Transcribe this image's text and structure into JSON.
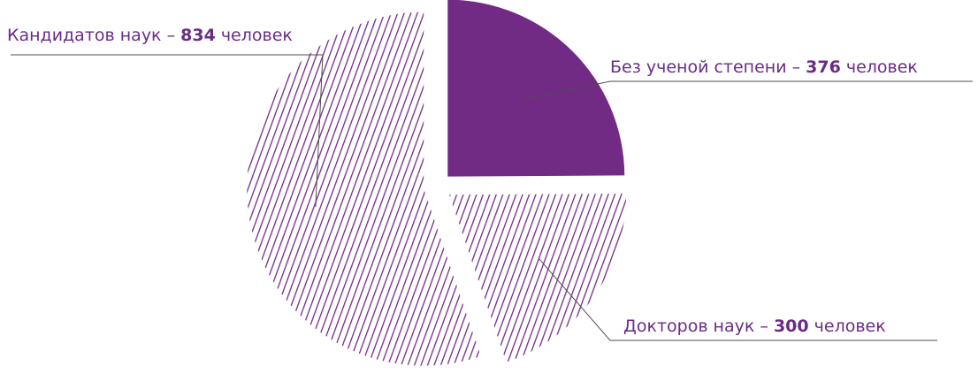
{
  "chart_data": {
    "type": "pie",
    "legend": "none",
    "slices": [
      {
        "label_prefix": "Без ученой степени – ",
        "value": 376,
        "label_suffix": " человек",
        "fill": "solid",
        "color": "#722b85"
      },
      {
        "label_prefix": "Докторов наук – ",
        "value": 300,
        "label_suffix": " человек",
        "fill": "hatched",
        "color": "#722b85"
      },
      {
        "label_prefix": "Кандидатов наук – ",
        "value": 834,
        "label_suffix": " человек",
        "fill": "hatched",
        "color": "#722b85"
      }
    ]
  }
}
